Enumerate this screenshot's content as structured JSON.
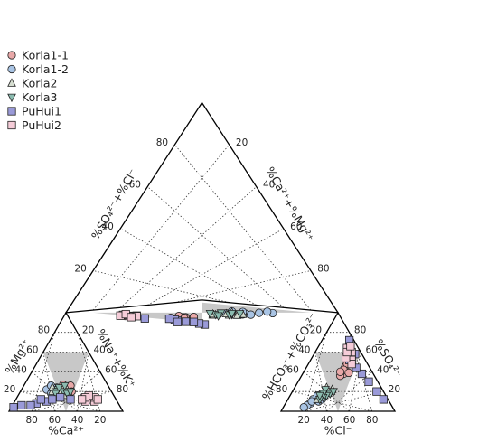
{
  "chart_data": {
    "type": "scatter",
    "subtype": "piper-diagram",
    "axis_labels": {
      "cation_bottom": "%Ca²⁺",
      "cation_left": "%Mg²⁺",
      "cation_right": "%Na⁺+%K⁺",
      "anion_bottom": "%Cl⁻",
      "anion_left": "%HCO₃⁻+%CO₃²⁻",
      "anion_right": "%SO₄²⁻",
      "diamond_upper_left": "%SO₄²⁻+%Cl⁻",
      "diamond_upper_right": "%Ca²⁺+%Mg²⁺"
    },
    "tick_labels": [
      "20",
      "40",
      "60",
      "80"
    ],
    "grid": true,
    "legend_position": "top-left",
    "series": [
      {
        "name": "Korla1-1",
        "marker": "circle",
        "fill": "#e8a8a8",
        "cation": [
          [
            36,
            25,
            39
          ],
          [
            40,
            22,
            38
          ],
          [
            44,
            20,
            36
          ],
          [
            38,
            24,
            38
          ],
          [
            42,
            22,
            36
          ],
          [
            33,
            26,
            41
          ],
          [
            46,
            18,
            36
          ],
          [
            35,
            20,
            45
          ],
          [
            39,
            27,
            34
          ]
        ],
        "anion": [
          [
            25,
            40,
            35
          ],
          [
            22,
            44,
            34
          ],
          [
            20,
            46,
            34
          ],
          [
            26,
            38,
            36
          ],
          [
            30,
            36,
            34
          ],
          [
            18,
            48,
            34
          ],
          [
            24,
            42,
            34
          ],
          [
            28,
            40,
            32
          ],
          [
            21,
            39,
            40
          ]
        ]
      },
      {
        "name": "Korla1-2",
        "marker": "circle",
        "fill": "#a9c4e4",
        "cation": [
          [
            48,
            22,
            30
          ],
          [
            52,
            20,
            28
          ],
          [
            44,
            18,
            38
          ],
          [
            56,
            22,
            22
          ],
          [
            40,
            16,
            44
          ],
          [
            50,
            26,
            24
          ],
          [
            46,
            24,
            30
          ],
          [
            54,
            18,
            28
          ],
          [
            42,
            20,
            38
          ]
        ],
        "anion": [
          [
            62,
            10,
            28
          ],
          [
            70,
            8,
            22
          ],
          [
            56,
            14,
            30
          ],
          [
            74,
            6,
            20
          ],
          [
            66,
            12,
            22
          ],
          [
            60,
            16,
            24
          ],
          [
            78,
            4,
            18
          ],
          [
            58,
            12,
            30
          ],
          [
            68,
            10,
            22
          ]
        ]
      },
      {
        "name": "Korla2",
        "marker": "triangle-up",
        "fill": "#d5ddd0",
        "cation": [
          [
            44,
            20,
            36
          ],
          [
            48,
            22,
            30
          ],
          [
            40,
            24,
            36
          ],
          [
            46,
            18,
            36
          ],
          [
            52,
            20,
            28
          ],
          [
            38,
            22,
            40
          ],
          [
            50,
            24,
            26
          ],
          [
            44,
            16,
            40
          ]
        ],
        "anion": [
          [
            46,
            20,
            34
          ],
          [
            50,
            18,
            32
          ],
          [
            54,
            16,
            30
          ],
          [
            44,
            22,
            34
          ],
          [
            58,
            14,
            28
          ],
          [
            48,
            24,
            28
          ],
          [
            52,
            20,
            28
          ],
          [
            62,
            12,
            26
          ]
        ]
      },
      {
        "name": "Korla3",
        "marker": "triangle-down",
        "fill": "#8cbcb0",
        "cation": [
          [
            42,
            20,
            38
          ],
          [
            46,
            22,
            32
          ],
          [
            40,
            18,
            42
          ],
          [
            48,
            20,
            32
          ],
          [
            44,
            24,
            32
          ],
          [
            36,
            20,
            44
          ],
          [
            50,
            18,
            32
          ],
          [
            38,
            26,
            36
          ]
        ],
        "anion": [
          [
            48,
            18,
            34
          ],
          [
            52,
            16,
            32
          ],
          [
            56,
            14,
            30
          ],
          [
            44,
            20,
            36
          ],
          [
            60,
            12,
            28
          ],
          [
            50,
            22,
            28
          ],
          [
            54,
            18,
            28
          ],
          [
            58,
            16,
            26
          ]
        ]
      },
      {
        "name": "PuHui1",
        "marker": "square",
        "fill": "#9a9ad8",
        "cation": [
          [
            94,
            4,
            2
          ],
          [
            86,
            6,
            8
          ],
          [
            72,
            8,
            20
          ],
          [
            62,
            10,
            28
          ],
          [
            56,
            12,
            32
          ],
          [
            48,
            14,
            38
          ],
          [
            40,
            12,
            48
          ],
          [
            78,
            6,
            16
          ],
          [
            66,
            12,
            22
          ]
        ],
        "anion": [
          [
            4,
            12,
            84
          ],
          [
            6,
            20,
            74
          ],
          [
            8,
            30,
            62
          ],
          [
            10,
            38,
            52
          ],
          [
            12,
            44,
            44
          ],
          [
            14,
            52,
            34
          ],
          [
            6,
            58,
            36
          ],
          [
            10,
            62,
            28
          ],
          [
            4,
            72,
            24
          ]
        ]
      },
      {
        "name": "PuHui2",
        "marker": "square",
        "fill": "#f5ccd8",
        "cation": [
          [
            24,
            12,
            64
          ],
          [
            20,
            10,
            70
          ],
          [
            18,
            14,
            68
          ],
          [
            28,
            10,
            62
          ],
          [
            22,
            16,
            62
          ],
          [
            16,
            12,
            72
          ],
          [
            26,
            14,
            60
          ],
          [
            30,
            12,
            58
          ]
        ],
        "anion": [
          [
            10,
            56,
            34
          ],
          [
            12,
            52,
            36
          ],
          [
            8,
            60,
            32
          ],
          [
            14,
            48,
            38
          ],
          [
            10,
            64,
            26
          ],
          [
            16,
            54,
            30
          ],
          [
            12,
            60,
            28
          ],
          [
            6,
            66,
            28
          ]
        ]
      }
    ]
  }
}
